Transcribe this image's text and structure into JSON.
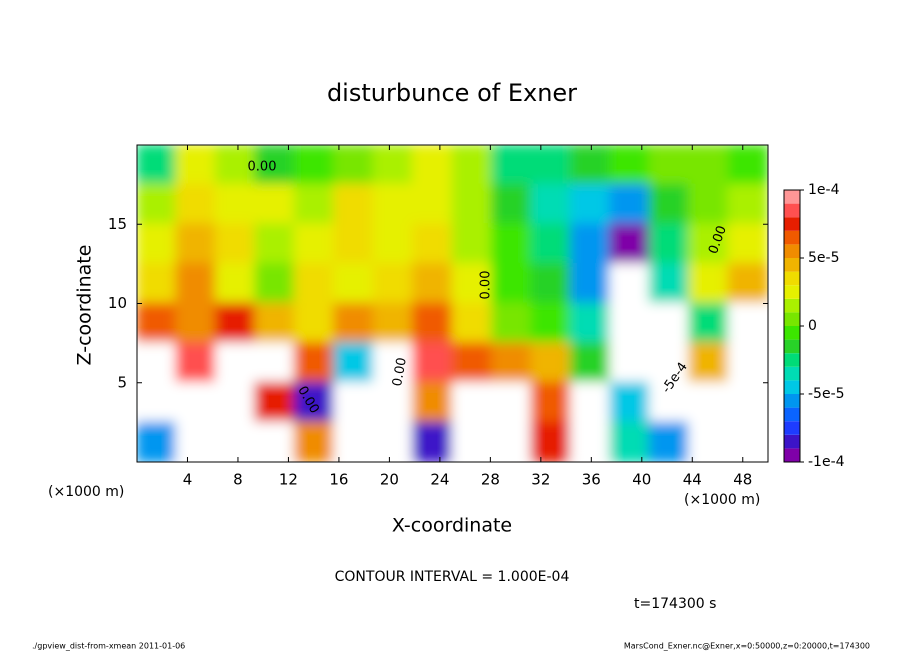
{
  "chart_data": {
    "type": "contour",
    "title": "disturbunce of Exner",
    "xlabel": "X-coordinate",
    "ylabel": "Z-coordinate",
    "x_units_left": "(×1000 m)",
    "x_units_right": "(×1000 m)",
    "contour_interval": "CONTOUR INTERVAL = 1.000E-04",
    "time_label": "t=174300 s",
    "footer_left": "./gpview_dist-from-xmean  2011-01-06",
    "footer_right": "MarsCond_Exner.nc@Exner,x=0:50000,z=0:20000,t=174300",
    "contour_labels": [
      "0.00",
      "0.00",
      "0.00",
      "0.00",
      "0.00",
      "-5e-4"
    ],
    "xlim": [
      0,
      50
    ],
    "xticks": [
      4,
      8,
      12,
      16,
      20,
      24,
      28,
      32,
      36,
      40,
      44,
      48
    ],
    "ylim": [
      0,
      20
    ],
    "yticks": [
      5,
      10,
      15
    ],
    "zlim": [
      -0.0001,
      0.0001
    ],
    "zticks": [
      {
        "value": 0.0001,
        "label": "1e-4"
      },
      {
        "value": 5e-05,
        "label": "5e-5"
      },
      0,
      {
        "value": -5e-05,
        "label": "-5e-5"
      },
      {
        "value": -0.0001,
        "label": "-1e-4"
      }
    ],
    "colormap": [
      "#7f00a8",
      "#3c14c8",
      "#1e3cff",
      "#0a64ff",
      "#0096f0",
      "#00c8e6",
      "#00dcb4",
      "#00dc78",
      "#28d228",
      "#3ce600",
      "#78e600",
      "#aaf000",
      "#e6f000",
      "#f0dc00",
      "#f0b400",
      "#f08c00",
      "#f05a00",
      "#e61e00",
      "#ff5050",
      "#ff9696"
    ],
    "over_color": "#ffffff",
    "values": [
      [
        -3e-05,
        2e-05,
        1e-05,
        -2e-05,
        -1e-05,
        0,
        1e-05,
        2e-05,
        1e-05,
        -3e-05,
        -3e-05,
        -2e-05,
        -1e-05,
        0,
        0,
        -1e-05
      ],
      [
        1e-05,
        3e-05,
        2e-05,
        2e-05,
        1e-05,
        3e-05,
        2e-05,
        2e-05,
        1e-05,
        -2e-05,
        -4e-05,
        -5e-05,
        -6e-05,
        -2e-05,
        0,
        1e-05
      ],
      [
        2e-05,
        4e-05,
        3e-05,
        1e-05,
        2e-05,
        3e-05,
        2e-05,
        3e-05,
        1e-05,
        -1e-05,
        -3e-05,
        -6e-05,
        -9e-05,
        -3e-05,
        1e-05,
        2e-05
      ],
      [
        3e-05,
        5e-05,
        2e-05,
        0,
        3e-05,
        2e-05,
        3e-05,
        4e-05,
        2e-05,
        -1e-05,
        -2e-05,
        -6e-05,
        -0.0002,
        -4e-05,
        2e-05,
        4e-05
      ],
      [
        6e-05,
        5e-05,
        7e-05,
        4e-05,
        3e-05,
        5e-05,
        4e-05,
        6e-05,
        3e-05,
        0,
        -1e-05,
        -4e-05,
        -0.0002,
        -0.0002,
        -3e-05,
        0.0002
      ],
      [
        0.0002,
        8e-05,
        0.0002,
        0.0002,
        6e-05,
        -5e-05,
        0.0002,
        8e-05,
        6e-05,
        5e-05,
        4e-05,
        -2e-05,
        -0.0002,
        -0.0002,
        4e-05,
        0.0002
      ],
      [
        0.0002,
        0.0002,
        0.0002,
        7e-05,
        -8e-05,
        0.0002,
        0.0002,
        5e-05,
        0.0002,
        0.0002,
        6e-05,
        0.0002,
        -5e-05,
        -0.0002,
        -0.0002,
        0.0002
      ],
      [
        -6e-05,
        0.0002,
        0.0002,
        0.0002,
        5e-05,
        0.0002,
        0.0002,
        -8e-05,
        0.0002,
        0.0002,
        7e-05,
        0.0002,
        -4e-05,
        -6e-05,
        0.0002,
        0.0002
      ]
    ]
  }
}
